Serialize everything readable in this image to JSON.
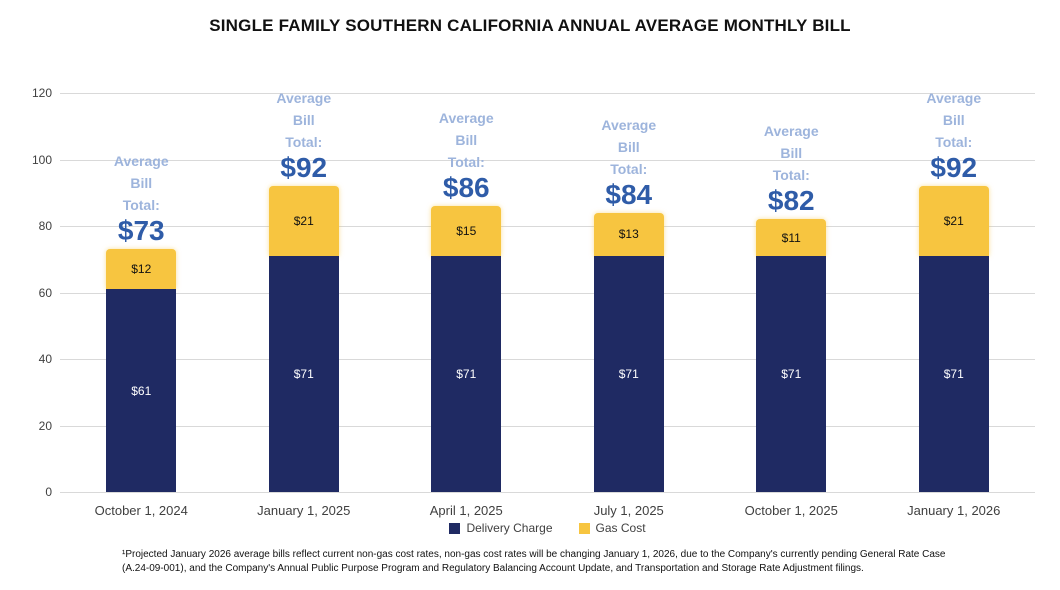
{
  "chart_data": {
    "type": "bar",
    "stacked": true,
    "title": "SINGLE FAMILY SOUTHERN CALIFORNIA ANNUAL AVERAGE MONTHLY BILL",
    "categories": [
      "October 1, 2024",
      "January 1, 2025",
      "April 1, 2025",
      "July 1, 2025",
      "October 1, 2025",
      "January 1, 2026"
    ],
    "series": [
      {
        "name": "Delivery Charge",
        "color": "#1f2a63",
        "values": [
          61,
          71,
          71,
          71,
          71,
          71
        ]
      },
      {
        "name": "Gas Cost",
        "color": "#f7c540",
        "values": [
          12,
          21,
          15,
          13,
          11,
          21
        ]
      }
    ],
    "totals": [
      73,
      92,
      86,
      84,
      82,
      92
    ],
    "currency_prefix": "$",
    "annotation_label": "Average\nBill\nTotal:",
    "yticks": [
      0,
      20,
      40,
      60,
      80,
      100,
      120
    ],
    "ylim": [
      0,
      120
    ],
    "grid": true,
    "legend_position": "bottom",
    "xlabel": "",
    "ylabel": ""
  },
  "colors": {
    "delivery_charge": "#1f2a63",
    "gas_cost": "#f7c540",
    "annotation_label_text": "#9db4dc",
    "annotation_total_text": "#2f5ca8",
    "gridline": "#d9d9d9",
    "axis_text": "#404040",
    "title_text": "#111111"
  },
  "footnote": {
    "text": "¹Projected January 2026 average bills reflect current non-gas cost rates, non-gas cost rates will be changing January 1, 2026, due to the Company's currently pending General Rate Case (A.24-09-001), and the Company's Annual Public Purpose Program and Regulatory Balancing Account Update, and Transportation and Storage Rate Adjustment filings."
  }
}
